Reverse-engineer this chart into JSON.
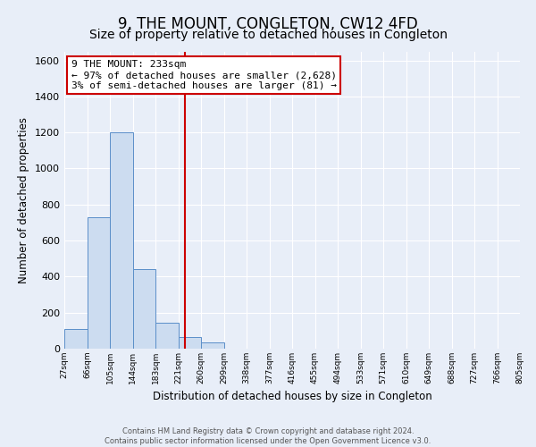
{
  "title": "9, THE MOUNT, CONGLETON, CW12 4FD",
  "subtitle": "Size of property relative to detached houses in Congleton",
  "xlabel": "Distribution of detached houses by size in Congleton",
  "ylabel": "Number of detached properties",
  "bar_values": [
    110,
    730,
    1200,
    440,
    145,
    65,
    35,
    0,
    0,
    0,
    0,
    0,
    0,
    0,
    0,
    0,
    0,
    0,
    0,
    0
  ],
  "bin_labels": [
    "27sqm",
    "66sqm",
    "105sqm",
    "144sqm",
    "183sqm",
    "221sqm",
    "260sqm",
    "299sqm",
    "338sqm",
    "377sqm",
    "416sqm",
    "455sqm",
    "494sqm",
    "533sqm",
    "571sqm",
    "610sqm",
    "649sqm",
    "688sqm",
    "727sqm",
    "766sqm",
    "805sqm"
  ],
  "bar_color": "#ccdcf0",
  "bar_edge_color": "#5b8fc9",
  "background_color": "#e8eef8",
  "grid_color": "#ffffff",
  "vline_color": "#cc0000",
  "ylim": [
    0,
    1650
  ],
  "yticks": [
    0,
    200,
    400,
    600,
    800,
    1000,
    1200,
    1400,
    1600
  ],
  "annotation_title": "9 THE MOUNT: 233sqm",
  "annotation_line1": "← 97% of detached houses are smaller (2,628)",
  "annotation_line2": "3% of semi-detached houses are larger (81) →",
  "annotation_box_color": "#ffffff",
  "annotation_box_edge": "#cc0000",
  "footer_line1": "Contains HM Land Registry data © Crown copyright and database right 2024.",
  "footer_line2": "Contains public sector information licensed under the Open Government Licence v3.0.",
  "title_fontsize": 12,
  "subtitle_fontsize": 10
}
